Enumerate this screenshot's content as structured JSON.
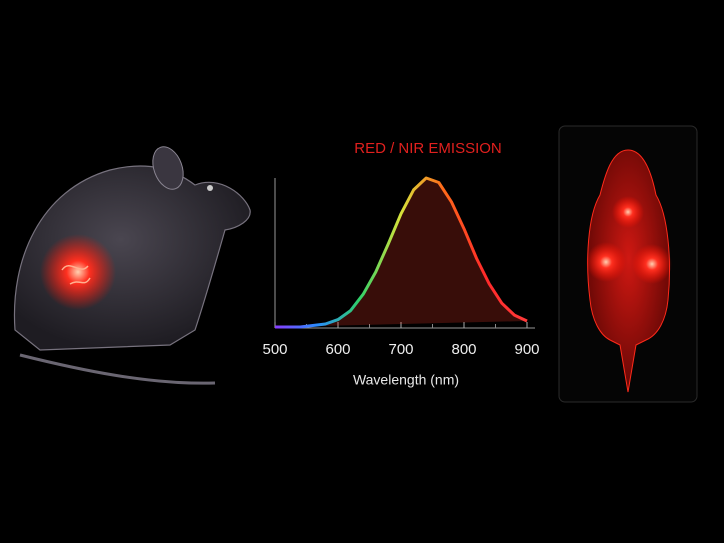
{
  "chart_data": {
    "type": "line",
    "title": "RED / NIR EMISSION",
    "x_label": "Wavelength (nm)",
    "x": [
      500,
      520,
      540,
      560,
      580,
      600,
      620,
      640,
      660,
      680,
      700,
      720,
      740,
      760,
      780,
      800,
      820,
      840,
      860,
      880,
      900
    ],
    "series": [
      {
        "values": [
          0,
          0,
          0,
          0.01,
          0.02,
          0.05,
          0.11,
          0.22,
          0.37,
          0.56,
          0.76,
          0.92,
          1.0,
          0.97,
          0.84,
          0.66,
          0.46,
          0.29,
          0.16,
          0.08,
          0.04
        ],
        "color": "#ff3a2a",
        "gradient": [
          "#8a3cff",
          "#2a8cff",
          "#2fd06a",
          "#d8e23a",
          "#ff6a1a",
          "#ff2a2a",
          "#ff3a3a"
        ]
      }
    ],
    "xlim": [
      500,
      900
    ],
    "ylim": [
      0,
      1
    ],
    "xticks": [
      500,
      600,
      700,
      800,
      900
    ],
    "xminorticks": [
      550,
      650,
      750,
      850
    ]
  }
}
